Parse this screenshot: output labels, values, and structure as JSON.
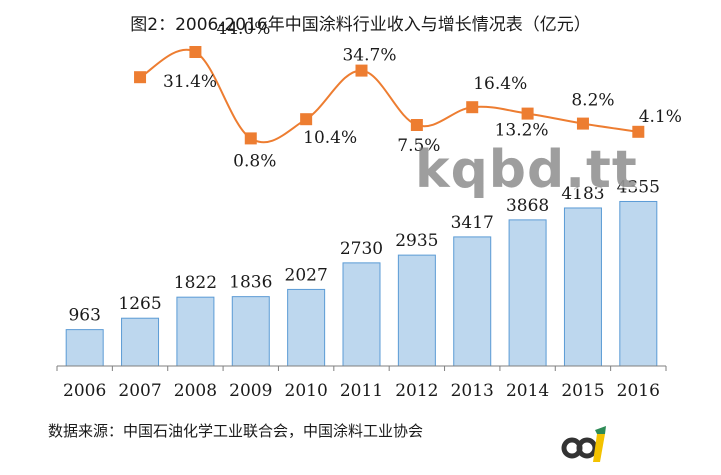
{
  "title": "图2：2006-2016年中国涂料行业收入与增长情况表（亿元）",
  "source": "数据来源：中国石油化学工业联合会，中国涂料工业协会",
  "watermark": "kqbd.tt",
  "colors": {
    "bar": "#bdd7ee",
    "bar_border": "#5b9bd5",
    "line": "#ed7d31",
    "marker": "#ed7d31"
  },
  "chart_data": {
    "type": "bar",
    "categories": [
      "2006",
      "2007",
      "2008",
      "2009",
      "2010",
      "2011",
      "2012",
      "2013",
      "2014",
      "2015",
      "2016"
    ],
    "series": [
      {
        "type": "bar",
        "values": [
          963,
          1265,
          1822,
          1836,
          2027,
          2730,
          2935,
          3417,
          3868,
          4183,
          4355
        ],
        "labels": [
          "963",
          "1265",
          "1822",
          "1836",
          "2027",
          "2730",
          "2935",
          "3417",
          "3868",
          "4183",
          "4355"
        ]
      },
      {
        "type": "line",
        "values": [
          null,
          31.4,
          44.0,
          0.8,
          10.4,
          34.7,
          7.5,
          16.4,
          13.2,
          8.2,
          4.1
        ],
        "labels": [
          "",
          "31.4%",
          "44.0%",
          "0.8%",
          "10.4%",
          "34.7%",
          "7.5%",
          "16.4%",
          "13.2%",
          "8.2%",
          "4.1%"
        ]
      }
    ],
    "ylim_bar": [
      0,
      9000
    ],
    "ylim_line": [
      -80,
      60
    ],
    "legend": "none",
    "grid": false
  }
}
